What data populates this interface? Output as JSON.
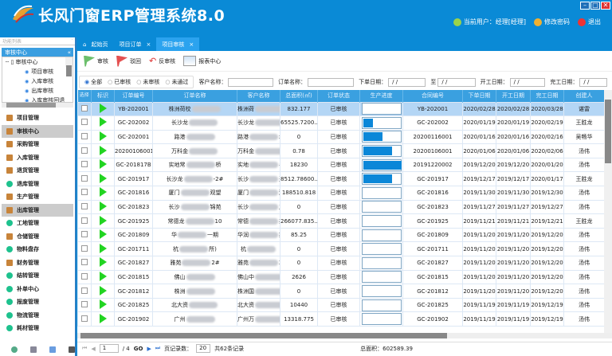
{
  "app": {
    "title": "长风门窗ERP管理系统8.0",
    "current_user": "当前用户：经理[经理]",
    "change_password": "修改密码",
    "logout": "退出",
    "win_min": "–",
    "win_max": "□",
    "win_close": "✕"
  },
  "sidebar": {
    "list_label": "功能列表",
    "list_pin": "ᐧ",
    "section": "审核中心",
    "collapse": "«",
    "tree_root": "审核中心",
    "tree_items": [
      "项目审核",
      "入库审核",
      "出库审核",
      "入库审核回退"
    ],
    "items": [
      {
        "label": "项目管理"
      },
      {
        "label": "审核中心",
        "active": true
      },
      {
        "label": "采购管理"
      },
      {
        "label": "入库管理"
      },
      {
        "label": "退货管理"
      },
      {
        "label": "退库管理"
      },
      {
        "label": "生产管理"
      },
      {
        "label": "出库管理",
        "active": true
      },
      {
        "label": "工地管理"
      },
      {
        "label": "仓储管理"
      },
      {
        "label": "物料盘存"
      },
      {
        "label": "财务管理"
      },
      {
        "label": "结转管理"
      },
      {
        "label": "补单中心"
      },
      {
        "label": "报废管理"
      },
      {
        "label": "物流管理"
      },
      {
        "label": "耗材管理"
      }
    ]
  },
  "tabs": [
    {
      "label": "起始页",
      "icon": "home-icon"
    },
    {
      "label": "项目订单",
      "close": "×"
    },
    {
      "label": "项目审核",
      "close": "×",
      "active": true
    }
  ],
  "toolbar": {
    "audit": "审核",
    "reject": "驳回",
    "unaudit": "反审核",
    "report": "报表中心"
  },
  "filter": {
    "radios": [
      "全部",
      "已审核",
      "未审核",
      "未通过"
    ],
    "selected": "全部",
    "customer_label": "客户名称：",
    "order_label": "订单名称：",
    "order_date_label": "下单日期：",
    "to_label": "至",
    "start_date_label": "开工日期：",
    "finish_date_label": "完工日期：",
    "date_placeholder": "/  /"
  },
  "table": {
    "columns": [
      "选择",
      "标识",
      "订单编号",
      "订单名称",
      "客户名称",
      "总面积(㎡)",
      "订单状态",
      "生产进度",
      "合同编号",
      "下单日期",
      "开工日期",
      "完工日期",
      "创建人"
    ],
    "rows": [
      [
        "YB-202001",
        "株洲荷校",
        "",
        "株洲荷",
        "系...",
        "832.177",
        "已审核",
        0,
        "YB-202001",
        "2020/02/28",
        "2020/02/28",
        "2020/03/28",
        "谌雷"
      ],
      [
        "GC-202002",
        "长沙龙",
        "",
        "长沙龙",
        "免...",
        "65525.7200...",
        "已审核",
        0.25,
        "GC-202002",
        "2020/01/19",
        "2020/01/19",
        "2020/02/19",
        "王胜龙"
      ],
      [
        "GC-202001",
        "路港",
        "",
        "路港",
        "墙",
        "0",
        "已审核",
        0.5,
        "20200116001",
        "2020/01/16",
        "2020/01/16",
        "2020/02/16",
        "吴畅华"
      ],
      [
        "20200106001",
        "万科金",
        "",
        "万科金",
        "一期",
        "0.78",
        "已审核",
        0.75,
        "20200106001",
        "2020/01/06",
        "2020/01/06",
        "2020/02/06",
        "汤伟"
      ],
      [
        "GC-201817B",
        "实地常",
        "桥",
        "实地",
        "#...",
        "18230",
        "已审核",
        1,
        "20191220002",
        "2019/12/20",
        "2019/12/20",
        "2020/01/20",
        "汤伟"
      ],
      [
        "GC-201917",
        "长沙龙",
        "-2#",
        "长沙",
        "天...",
        "8512.78600...",
        "已审核",
        0.75,
        "GC-201917",
        "2019/12/17",
        "2019/12/17",
        "2020/01/17",
        "王胜龙"
      ],
      [
        "GC-201816",
        "厦门",
        "观望",
        "厦门",
        "观望",
        "188510.818",
        "已审核",
        0,
        "GC-201816",
        "2019/11/30",
        "2019/11/30",
        "2019/12/30",
        "汤伟"
      ],
      [
        "GC-201823",
        "长沙",
        "锦苑",
        "长沙",
        "之...",
        "0",
        "已审核",
        0,
        "GC-201823",
        "2019/11/27",
        "2019/11/27",
        "2019/12/27",
        "汤伟"
      ],
      [
        "GC-201925",
        "常德龙",
        "10",
        "常德",
        "苑...",
        "266077.835...",
        "已审核",
        0,
        "GC-201925",
        "2019/11/21",
        "2019/11/21",
        "2019/12/21",
        "王胜龙"
      ],
      [
        "GC-201809",
        "华",
        "一期",
        "华润",
        "期",
        "85.25",
        "已审核",
        0,
        "GC-201809",
        "2019/11/20",
        "2019/11/20",
        "2019/12/20",
        "汤伟"
      ],
      [
        "GC-201711",
        "杭",
        "所)",
        "杭",
        "",
        "0",
        "已审核",
        0,
        "GC-201711",
        "2019/11/20",
        "2019/11/20",
        "2019/12/20",
        "汤伟"
      ],
      [
        "GC-201827",
        "雅苑",
        "2#",
        "雅苑",
        "2#",
        "0",
        "已审核",
        0,
        "GC-201827",
        "2019/11/20",
        "2019/11/20",
        "2019/12/20",
        "汤伟"
      ],
      [
        "GC-201815",
        "佛山",
        "",
        "佛山中",
        "西岸",
        "2626",
        "已审核",
        0,
        "GC-201815",
        "2019/11/20",
        "2019/11/20",
        "2019/12/20",
        "汤伟"
      ],
      [
        "GC-201812",
        "株洲",
        "",
        "株洲国",
        "未来",
        "0",
        "已审核",
        0,
        "GC-201812",
        "2019/11/20",
        "2019/11/20",
        "2019/12/20",
        "汤伟"
      ],
      [
        "GC-201825",
        "北大资",
        "",
        "北大资",
        "天...",
        "10440",
        "已审核",
        0,
        "GC-201825",
        "2019/11/19",
        "2019/11/19",
        "2019/12/19",
        "汤伟"
      ],
      [
        "GC-201902",
        "广州",
        "",
        "广州万",
        "森林",
        "13318.775",
        "已审核",
        0,
        "GC-201902",
        "2019/11/19",
        "2019/11/19",
        "2019/12/19",
        "汤伟"
      ]
    ]
  },
  "pager": {
    "first": "⏮",
    "prev": "◀",
    "page": "1",
    "of": "/ 4",
    "go": "GO",
    "next": "▶",
    "last": "⏭",
    "page_size_label": "页记录数：",
    "page_size": "20",
    "total_records": "共62条记录",
    "total_area": "总面积：602589.39"
  },
  "colors": {
    "brand": "#0a8ad6",
    "header_row": "#3aa0e0",
    "selected_row": "#b4d6f5",
    "progress": "#0b87d8",
    "flag_icon": "#22d422"
  }
}
